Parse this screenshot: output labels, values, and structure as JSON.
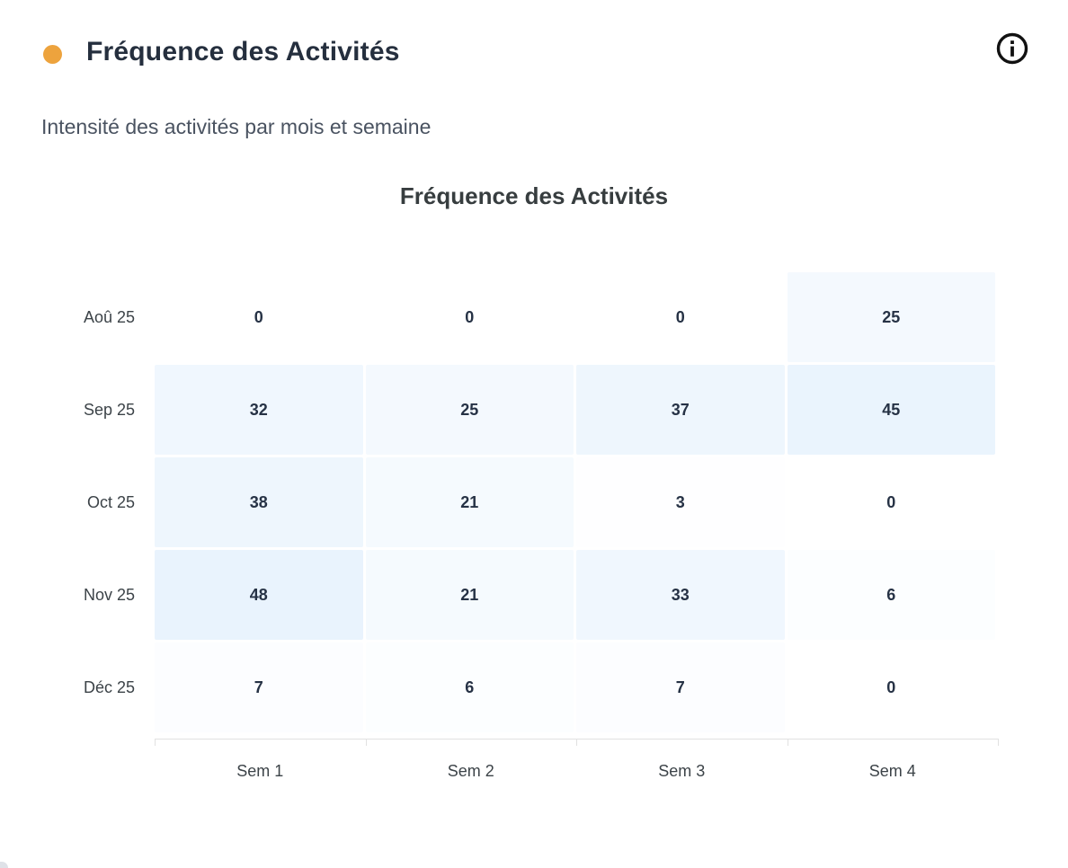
{
  "header": {
    "bullet_color": "#eda33d",
    "title": "Fréquence des Activités",
    "subtitle": "Intensité des activités par mois et semaine",
    "info_icon": "info-circle-icon",
    "info_icon_color": "#111111"
  },
  "chart_data": {
    "type": "heatmap",
    "title": "Fréquence des Activités",
    "categories": [
      "Sem 1",
      "Sem 2",
      "Sem 3",
      "Sem 4"
    ],
    "series": [
      {
        "name": "Aoû 25",
        "values": [
          0,
          0,
          0,
          25
        ]
      },
      {
        "name": "Sep 25",
        "values": [
          32,
          25,
          37,
          45
        ]
      },
      {
        "name": "Oct 25",
        "values": [
          38,
          21,
          3,
          0
        ]
      },
      {
        "name": "Nov 25",
        "values": [
          48,
          21,
          33,
          6
        ]
      },
      {
        "name": "Déc 25",
        "values": [
          7,
          6,
          7,
          0
        ]
      }
    ],
    "value_range": [
      0,
      48
    ],
    "color_scale": {
      "min": "#ffffff",
      "max": "#e9f3fd"
    },
    "label_color": "#263245",
    "axis_label_color": "#3c4348",
    "legend": "none",
    "grid": "off"
  }
}
